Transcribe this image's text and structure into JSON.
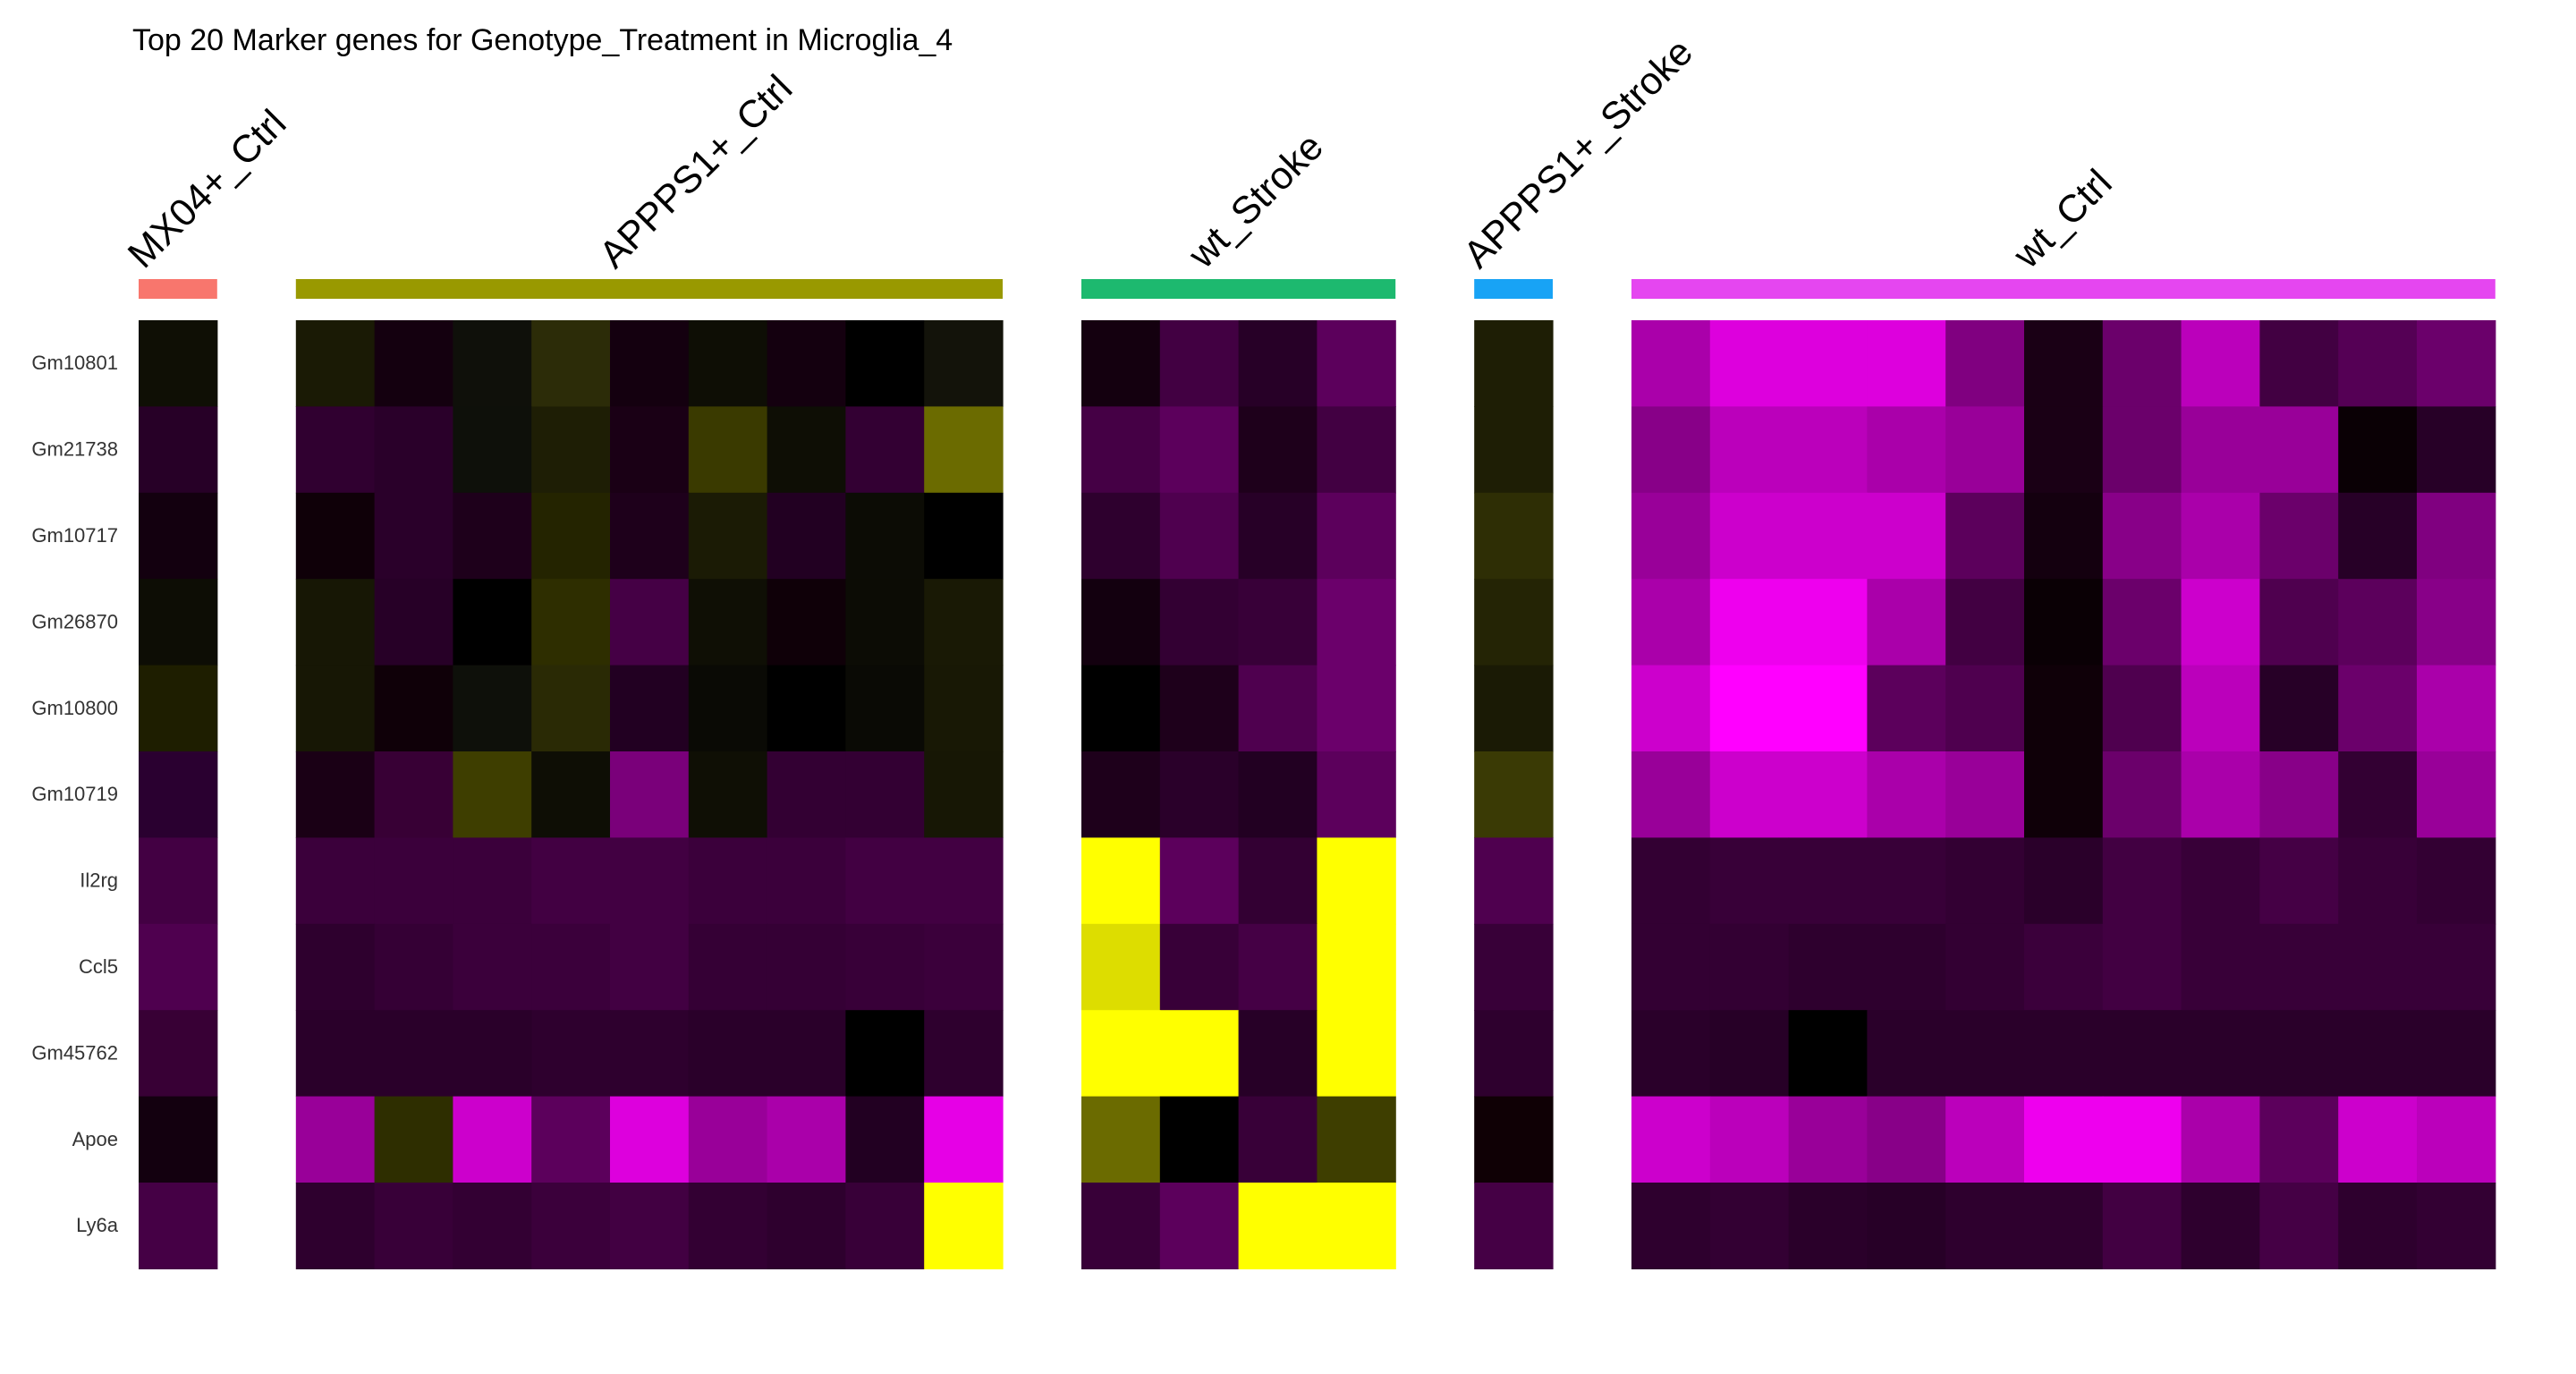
{
  "chart_data": {
    "type": "heatmap",
    "title": "Top 20 Marker genes for Genotype_Treatment in Microglia_4",
    "xlabel": "",
    "ylabel": "",
    "legend": "none",
    "grid": false,
    "genes": [
      "Gm10801",
      "Gm21738",
      "Gm10717",
      "Gm26870",
      "Gm10800",
      "Gm10719",
      "Il2rg",
      "Ccl5",
      "Gm45762",
      "Apoe",
      "Ly6a"
    ],
    "groups": [
      {
        "name": "MX04+_Ctrl",
        "color": "#f8766d",
        "cells": [
          [
            "#0f0f05"
          ],
          [
            "#270027"
          ],
          [
            "#13000f"
          ],
          [
            "#0d0d05"
          ],
          [
            "#1e1e00"
          ],
          [
            "#2a0030"
          ],
          [
            "#430043"
          ],
          [
            "#4f004f"
          ],
          [
            "#380035"
          ],
          [
            "#13000f"
          ],
          [
            "#450045"
          ]
        ]
      },
      {
        "name": "APPPS1+_Ctrl",
        "color": "#999900",
        "cells": [
          [
            "#1a1a05",
            "#14000f",
            "#0f100a",
            "#2c2c08",
            "#14000f",
            "#0e0e05",
            "#14000f",
            "#000000",
            "#13130a"
          ],
          [
            "#300030",
            "#2a002a",
            "#0e100a",
            "#1e1e05",
            "#1a0015",
            "#3a3a00",
            "#0e0e05",
            "#330033",
            "#6b6b00"
          ],
          [
            "#0f0008",
            "#2a002a",
            "#1e001b",
            "#242400",
            "#1e001b",
            "#1b1b05",
            "#220022",
            "#0c0c05",
            "#000000"
          ],
          [
            "#171705",
            "#270027",
            "#000000",
            "#2e2e00",
            "#450045",
            "#0f0f05",
            "#0f0008",
            "#0c0c05",
            "#191905"
          ],
          [
            "#171705",
            "#0f0008",
            "#0e100a",
            "#2a2a05",
            "#220022",
            "#0a0a05",
            "#000000",
            "#0a0a05",
            "#181805"
          ],
          [
            "#1a0015",
            "#380035",
            "#3e3e00",
            "#0e0e05",
            "#7a007a",
            "#0f0f05",
            "#330033",
            "#330033",
            "#171705"
          ],
          [
            "#3b003b",
            "#3b003b",
            "#3b003b",
            "#420042",
            "#420042",
            "#3b003b",
            "#3b003b",
            "#420042",
            "#420042"
          ],
          [
            "#2e002e",
            "#350035",
            "#3b003b",
            "#3b003b",
            "#420042",
            "#350035",
            "#350035",
            "#380038",
            "#3b003b"
          ],
          [
            "#2a002a",
            "#2a002a",
            "#2a002a",
            "#2e002e",
            "#2e002e",
            "#2a002a",
            "#2a002a",
            "#000000",
            "#2e002e"
          ],
          [
            "#990099",
            "#2e2e00",
            "#cc00cc",
            "#5c005c",
            "#dd00dd",
            "#990099",
            "#aa00aa",
            "#220022",
            "#e600e6"
          ],
          [
            "#2e002e",
            "#380038",
            "#330033",
            "#3b003b",
            "#420042",
            "#330033",
            "#2e002e",
            "#380038",
            "#ffff00"
          ]
        ]
      },
      {
        "name": "wt_Stroke",
        "color": "#1db96f",
        "cells": [
          [
            "#14000f",
            "#420042",
            "#270027",
            "#5c005c"
          ],
          [
            "#450045",
            "#5c005c",
            "#1e001b",
            "#420042"
          ],
          [
            "#2e002e",
            "#4f004f",
            "#270027",
            "#5c005c"
          ],
          [
            "#13000f",
            "#330033",
            "#380038",
            "#6b006b"
          ],
          [
            "#000000",
            "#1e001b",
            "#4f004f",
            "#6b006b"
          ],
          [
            "#1e001b",
            "#2a002a",
            "#220022",
            "#5c005c"
          ],
          [
            "#ffff00",
            "#5c005c",
            "#330033",
            "#ffff00"
          ],
          [
            "#dddd00",
            "#380038",
            "#450045",
            "#ffff00"
          ],
          [
            "#ffff00",
            "#ffff00",
            "#270027",
            "#ffff00"
          ],
          [
            "#6b6b00",
            "#000000",
            "#380038",
            "#3e3e00"
          ],
          [
            "#380038",
            "#5c005c",
            "#ffff00",
            "#ffff00"
          ]
        ]
      },
      {
        "name": "APPPS1+_Stroke",
        "color": "#18a3f5",
        "cells": [
          [
            "#1e1e05"
          ],
          [
            "#1e1e05"
          ],
          [
            "#2e2e05"
          ],
          [
            "#242405"
          ],
          [
            "#1a1a05"
          ],
          [
            "#3a3a05"
          ],
          [
            "#4f004f"
          ],
          [
            "#380038"
          ],
          [
            "#2e002e"
          ],
          [
            "#0f0005"
          ],
          [
            "#450045"
          ]
        ]
      },
      {
        "name": "wt_Ctrl",
        "color": "#e546f0",
        "cells": [
          [
            "#aa00aa",
            "#dd00dd",
            "#dd00dd",
            "#dd00dd",
            "#800080",
            "#1a0015",
            "#6b006b",
            "#bb00bb",
            "#420042",
            "#550055",
            "#6b006b"
          ],
          [
            "#880088",
            "#bb00bb",
            "#bb00bb",
            "#aa00aa",
            "#990099",
            "#1a0015",
            "#6b006b",
            "#990099",
            "#990099",
            "#0a0005",
            "#270027"
          ],
          [
            "#990099",
            "#cc00cc",
            "#cc00cc",
            "#cc00cc",
            "#5c005c",
            "#14000f",
            "#880088",
            "#aa00aa",
            "#6b006b",
            "#270027",
            "#800080"
          ],
          [
            "#aa00aa",
            "#ee00ee",
            "#ee00ee",
            "#aa00aa",
            "#420042",
            "#0a0005",
            "#6b006b",
            "#cc00cc",
            "#4f004f",
            "#5c005c",
            "#880088"
          ],
          [
            "#cc00cc",
            "#ff00ff",
            "#ff00ff",
            "#5c005c",
            "#4f004f",
            "#0f0008",
            "#4f004f",
            "#bb00bb",
            "#270027",
            "#6b006b",
            "#aa00aa"
          ],
          [
            "#990099",
            "#cc00cc",
            "#cc00cc",
            "#aa00aa",
            "#990099",
            "#0f0008",
            "#6b006b",
            "#aa00aa",
            "#880088",
            "#330033",
            "#990099"
          ],
          [
            "#330033",
            "#380038",
            "#380038",
            "#380038",
            "#330033",
            "#2a002a",
            "#420042",
            "#380038",
            "#450045",
            "#380038",
            "#330033"
          ],
          [
            "#330033",
            "#330033",
            "#2e002e",
            "#2e002e",
            "#330033",
            "#3b003b",
            "#420042",
            "#380038",
            "#380038",
            "#380038",
            "#380038"
          ],
          [
            "#2a002a",
            "#270027",
            "#000000",
            "#2a002a",
            "#2a002a",
            "#2a002a",
            "#2a002a",
            "#2a002a",
            "#2a002a",
            "#2a002a",
            "#2a002a"
          ],
          [
            "#cc00cc",
            "#bb00bb",
            "#990099",
            "#880088",
            "#bb00bb",
            "#ee00ee",
            "#ee00ee",
            "#aa00aa",
            "#5c005c",
            "#cc00cc",
            "#bb00bb"
          ],
          [
            "#2e002e",
            "#330033",
            "#2a002a",
            "#270027",
            "#2e002e",
            "#2e002e",
            "#420042",
            "#2e002e",
            "#450045",
            "#2e002e",
            "#330033"
          ]
        ]
      }
    ]
  }
}
